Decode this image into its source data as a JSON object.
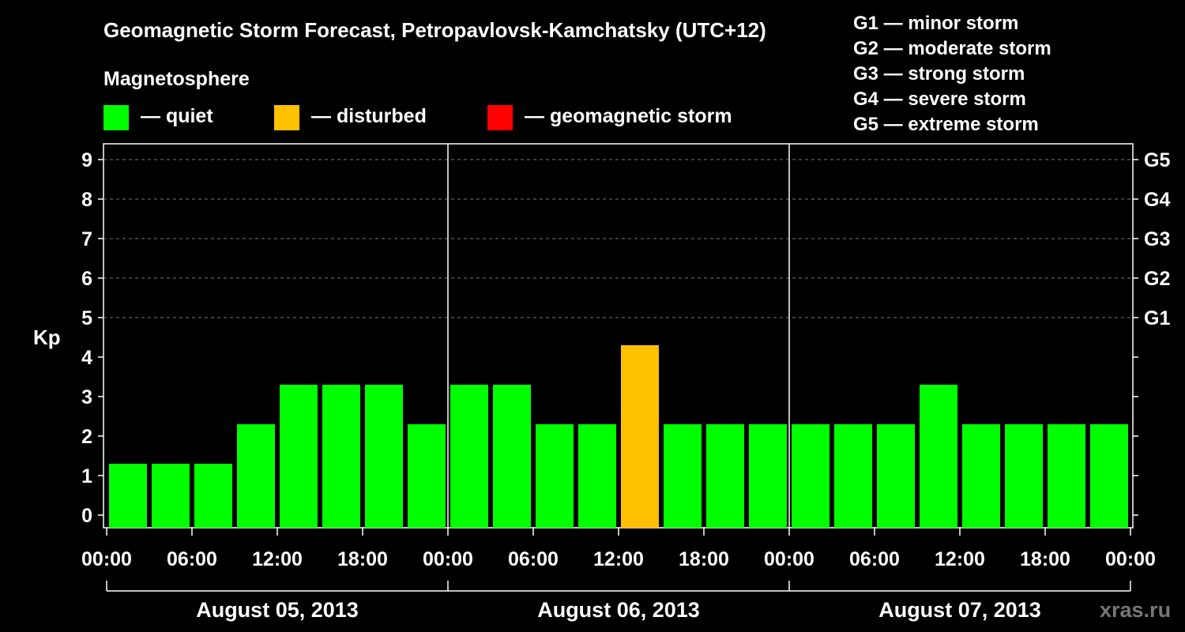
{
  "chart_data": {
    "type": "bar",
    "title": "Geomagnetic Storm Forecast, Petropavlovsk-Kamchatsky (UTC+12)",
    "ylabel": "Kp",
    "ylim": [
      0,
      9
    ],
    "y_ticks": [
      "0",
      "1",
      "2",
      "3",
      "4",
      "5",
      "6",
      "7",
      "8",
      "9"
    ],
    "right_ticks": [
      {
        "kp": 5,
        "label": "G1"
      },
      {
        "kp": 6,
        "label": "G2"
      },
      {
        "kp": 7,
        "label": "G3"
      },
      {
        "kp": 8,
        "label": "G4"
      },
      {
        "kp": 9,
        "label": "G5"
      }
    ],
    "x_tick_labels": [
      "00:00",
      "06:00",
      "12:00",
      "18:00",
      "00:00",
      "06:00",
      "12:00",
      "18:00",
      "00:00",
      "06:00",
      "12:00",
      "18:00",
      "00:00"
    ],
    "days": [
      "August 05, 2013",
      "August 06, 2013",
      "August 07, 2013"
    ],
    "values": [
      1,
      1,
      1,
      2,
      3,
      3,
      3,
      2,
      3,
      3,
      2,
      2,
      4,
      2,
      2,
      2,
      2,
      2,
      2,
      3,
      2,
      2,
      2,
      2
    ],
    "level_colors": {
      "quiet": "#00ff00",
      "disturbed": "#ffc000",
      "storm": "#ff0000"
    },
    "grid": "horizontal dashed at 5–9",
    "legend": {
      "heading": "Magnetosphere",
      "items": [
        {
          "label": "— quiet",
          "color": "#00ff00"
        },
        {
          "label": "— disturbed",
          "color": "#ffc000"
        },
        {
          "label": "— geomagnetic storm",
          "color": "#ff0000"
        }
      ]
    },
    "storm_scale": [
      "G1 — minor storm",
      "G2 — moderate storm",
      "G3 — strong storm",
      "G4 — severe storm",
      "G5 — extreme storm"
    ]
  },
  "watermark": "xras.ru"
}
